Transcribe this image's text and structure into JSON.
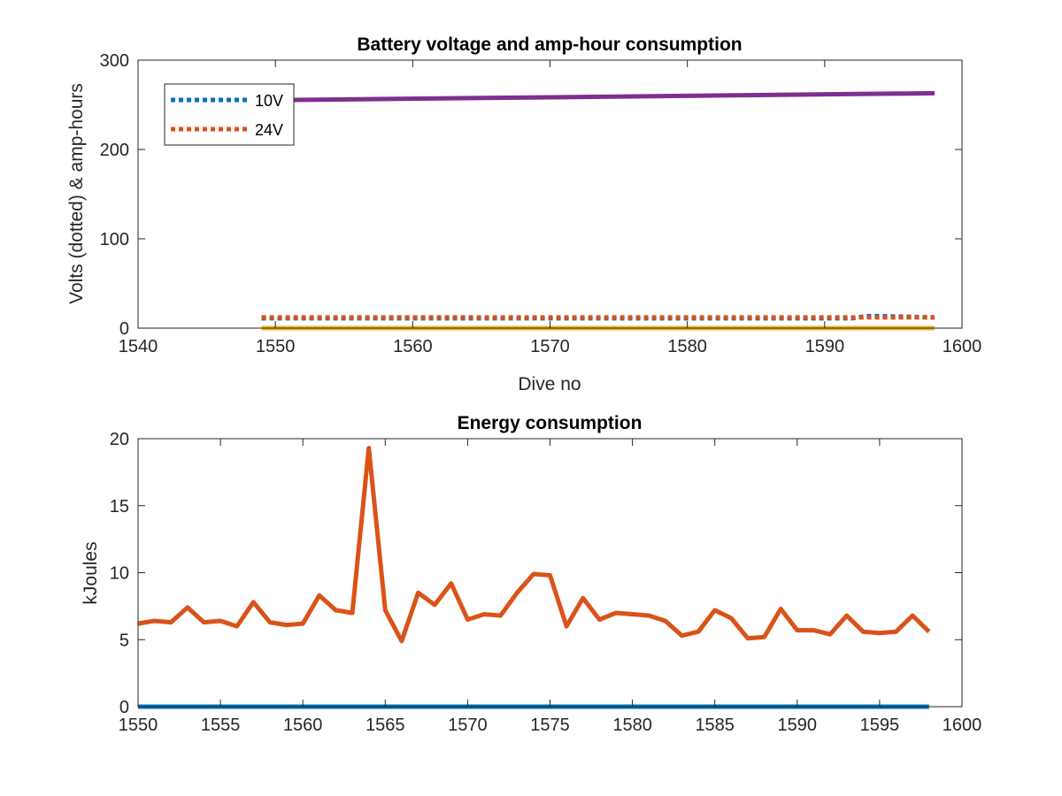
{
  "chart_data": [
    {
      "type": "line",
      "title": "Battery voltage and amp-hour consumption",
      "xlabel": "Dive no",
      "ylabel": "Volts (dotted) & amp-hours",
      "xlim": [
        1540,
        1600
      ],
      "ylim": [
        0,
        300
      ],
      "xticks": [
        1540,
        1550,
        1560,
        1570,
        1580,
        1590,
        1600
      ],
      "yticks": [
        0,
        100,
        200,
        300
      ],
      "legend": {
        "placement": "top-left",
        "entries": [
          "10V",
          "24V"
        ]
      },
      "series": [
        {
          "name": "10V",
          "style": "dotted",
          "color": "#0072BD",
          "x": [
            1549,
            1592,
            1593,
            1594,
            1598
          ],
          "y": [
            11,
            11,
            13.5,
            13.5,
            12
          ]
        },
        {
          "name": "24V",
          "style": "dotted",
          "color": "#D95319",
          "x": [
            1549,
            1598
          ],
          "y": [
            12,
            12
          ]
        },
        {
          "style": "solid",
          "color": "#7E2F8E",
          "x": [
            1549,
            1598
          ],
          "y": [
            255,
            263
          ]
        },
        {
          "style": "solid",
          "color": "#EDB120",
          "x": [
            1549,
            1598
          ],
          "y": [
            0,
            0
          ]
        }
      ]
    },
    {
      "type": "line",
      "title": "Energy consumption",
      "xlabel": "",
      "ylabel": "kJoules",
      "xlim": [
        1550,
        1600
      ],
      "ylim": [
        0,
        20
      ],
      "xticks": [
        1550,
        1555,
        1560,
        1565,
        1570,
        1575,
        1580,
        1585,
        1590,
        1595,
        1600
      ],
      "yticks": [
        0,
        5,
        10,
        15,
        20
      ],
      "series": [
        {
          "style": "solid",
          "color": "#0072BD",
          "x": [
            1550,
            1598
          ],
          "y": [
            0,
            0
          ]
        },
        {
          "style": "solid",
          "color": "#D95319",
          "x": [
            1550,
            1551,
            1552,
            1553,
            1554,
            1555,
            1556,
            1557,
            1558,
            1559,
            1560,
            1561,
            1562,
            1563,
            1564,
            1565,
            1566,
            1567,
            1568,
            1569,
            1570,
            1571,
            1572,
            1573,
            1574,
            1575,
            1576,
            1577,
            1578,
            1579,
            1580,
            1581,
            1582,
            1583,
            1584,
            1585,
            1586,
            1587,
            1588,
            1589,
            1590,
            1591,
            1592,
            1593,
            1594,
            1595,
            1596,
            1597,
            1598
          ],
          "y": [
            6.2,
            6.4,
            6.3,
            7.4,
            6.3,
            6.4,
            6.0,
            7.8,
            6.3,
            6.1,
            6.2,
            8.3,
            7.2,
            7.0,
            19.3,
            7.2,
            4.9,
            8.5,
            7.6,
            9.2,
            6.5,
            6.9,
            6.8,
            8.5,
            9.9,
            9.8,
            6.0,
            8.1,
            6.5,
            7.0,
            6.9,
            6.8,
            6.4,
            5.3,
            5.6,
            7.2,
            6.6,
            5.1,
            5.2,
            7.3,
            5.7,
            5.7,
            5.4,
            6.8,
            5.6,
            5.5,
            5.6,
            6.8,
            5.6
          ]
        }
      ]
    }
  ]
}
